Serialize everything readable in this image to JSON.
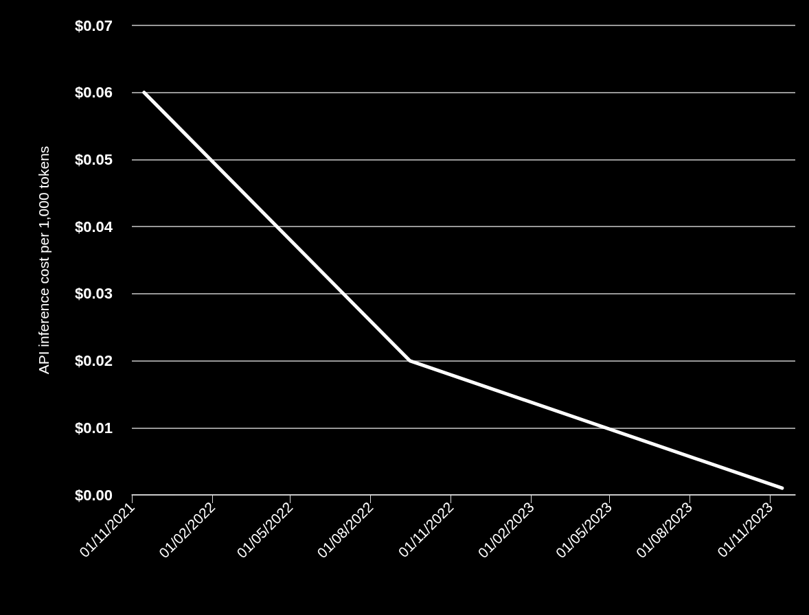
{
  "chart_data": {
    "type": "line",
    "ylabel": "API inference cost per 1,000 tokens",
    "x": [
      "2021-11-15",
      "2022-09-15",
      "2023-11-15"
    ],
    "series": [
      {
        "color": "#ffffff",
        "values": [
          0.06,
          0.02,
          0.001
        ]
      }
    ],
    "xlim": [
      "2021-11-01",
      "2023-11-30"
    ],
    "xticks": [
      {
        "value": "2021-11-01",
        "label": "01/11/2021"
      },
      {
        "value": "2022-02-01",
        "label": "01/02/2022"
      },
      {
        "value": "2022-05-01",
        "label": "01/05/2022"
      },
      {
        "value": "2022-08-01",
        "label": "01/08/2022"
      },
      {
        "value": "2022-11-01",
        "label": "01/11/2022"
      },
      {
        "value": "2023-02-01",
        "label": "01/02/2023"
      },
      {
        "value": "2023-05-01",
        "label": "01/05/2023"
      },
      {
        "value": "2023-08-01",
        "label": "01/08/2023"
      },
      {
        "value": "2023-11-01",
        "label": "01/11/2023"
      }
    ],
    "ylim": [
      0,
      0.07
    ],
    "yticks": [
      {
        "value": 0,
        "label": "$0.00"
      },
      {
        "value": 0.01,
        "label": "$0.01"
      },
      {
        "value": 0.02,
        "label": "$0.02"
      },
      {
        "value": 0.03,
        "label": "$0.03"
      },
      {
        "value": 0.04,
        "label": "$0.04"
      },
      {
        "value": 0.05,
        "label": "$0.05"
      },
      {
        "value": 0.06,
        "label": "$0.06"
      },
      {
        "value": 0.07,
        "label": "$0.07"
      }
    ],
    "grid": "y",
    "marker": "none",
    "line_style": "solid"
  }
}
